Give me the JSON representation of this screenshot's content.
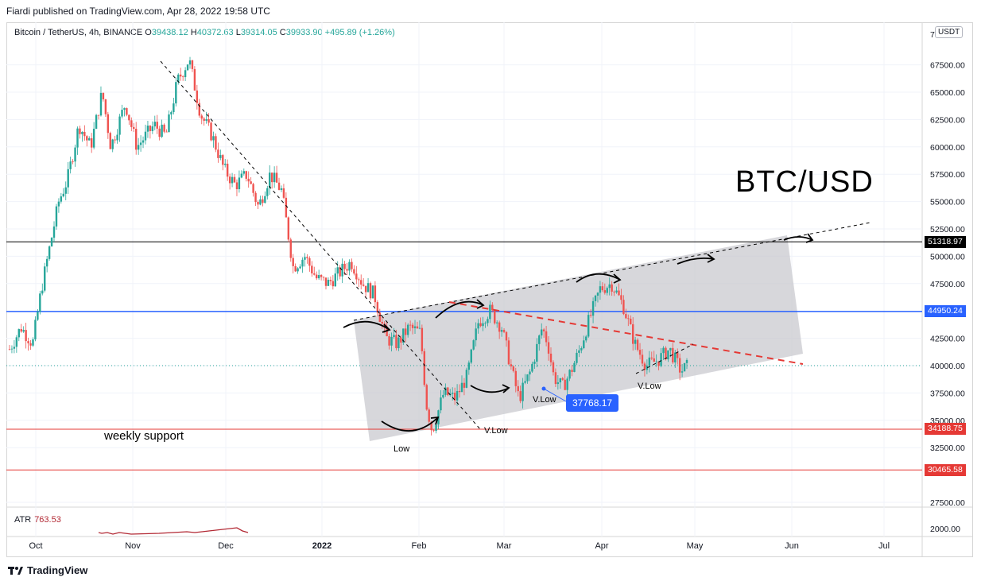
{
  "header": {
    "publisher": "Fiardi published on TradingView.com, Apr 28, 2022 19:58 UTC"
  },
  "symbol_bar": {
    "name": "Bitcoin / TetherUS, 4h, BINANCE",
    "open_label": "O",
    "open": "39438.12",
    "high_label": "H",
    "high": "40372.63",
    "low_label": "L",
    "low": "39314.05",
    "close_label": "C",
    "close": "39933.90",
    "change": "+495.89 (+1.26%)"
  },
  "currency_badge": "USDT",
  "atr": {
    "label": "ATR",
    "value": "763.53"
  },
  "annotations": {
    "title": "BTC/USD",
    "weekly_support": "weekly support",
    "low": "Low",
    "vlow1": "V.Low",
    "vlow2": "V.Low",
    "vlow3": "V.Low",
    "callout": "37768.17"
  },
  "price_tags": [
    {
      "value": "51318.97",
      "color": "#000000"
    },
    {
      "value": "44950.24",
      "color": "#2962ff"
    },
    {
      "value": "34188.75",
      "color": "#e53935"
    },
    {
      "value": "30465.58",
      "color": "#e53935"
    }
  ],
  "footer": {
    "brand": "TradingView"
  },
  "chart_data": {
    "type": "candlestick",
    "y_ticks": [
      "67500.00",
      "65000.00",
      "62500.00",
      "60000.00",
      "57500.00",
      "55000.00",
      "52500.00",
      "50000.00",
      "47500.00",
      "42500.00",
      "40000.00",
      "37500.00",
      "35000.00",
      "32500.00",
      "27500.00"
    ],
    "y_top_partial": "7",
    "atr_tick": "2000.00",
    "x_ticks": [
      "Oct",
      "Nov",
      "Dec",
      "2022",
      "Feb",
      "Mar",
      "Apr",
      "May",
      "Jun",
      "Jul"
    ],
    "horizontal_levels": [
      {
        "value": 51318.97,
        "color": "#000000"
      },
      {
        "value": 44950.24,
        "color": "#2962ff"
      },
      {
        "value": 34188.75,
        "color": "#e53935"
      },
      {
        "value": 30465.58,
        "color": "#e53935"
      }
    ],
    "price_path": [
      [
        0,
        41500
      ],
      [
        0.02,
        43500
      ],
      [
        0.04,
        42000
      ],
      [
        0.055,
        47000
      ],
      [
        0.07,
        51000
      ],
      [
        0.085,
        55000
      ],
      [
        0.1,
        57000
      ],
      [
        0.12,
        62000
      ],
      [
        0.14,
        60000
      ],
      [
        0.16,
        65000
      ],
      [
        0.175,
        60000
      ],
      [
        0.2,
        64000
      ],
      [
        0.22,
        60000
      ],
      [
        0.25,
        62000
      ],
      [
        0.27,
        61000
      ],
      [
        0.29,
        66000
      ],
      [
        0.31,
        68000
      ],
      [
        0.33,
        63000
      ],
      [
        0.35,
        61000
      ],
      [
        0.37,
        58000
      ],
      [
        0.39,
        56500
      ],
      [
        0.41,
        57500
      ],
      [
        0.43,
        54500
      ],
      [
        0.45,
        57500
      ],
      [
        0.47,
        56000
      ],
      [
        0.49,
        49000
      ],
      [
        0.51,
        50000
      ],
      [
        0.53,
        48000
      ],
      [
        0.55,
        47500
      ],
      [
        0.57,
        48500
      ],
      [
        0.59,
        49500
      ],
      [
        0.61,
        47500
      ],
      [
        0.63,
        46500
      ],
      [
        0.65,
        42500
      ],
      [
        0.67,
        42000
      ],
      [
        0.69,
        43500
      ],
      [
        0.71,
        43000
      ],
      [
        0.72,
        36500
      ],
      [
        0.73,
        34000
      ],
      [
        0.75,
        37500
      ],
      [
        0.77,
        37000
      ],
      [
        0.79,
        39000
      ],
      [
        0.81,
        44000
      ],
      [
        0.83,
        45000
      ],
      [
        0.85,
        43500
      ],
      [
        0.87,
        39000
      ],
      [
        0.88,
        37000
      ],
      [
        0.9,
        39500
      ],
      [
        0.92,
        43500
      ],
      [
        0.93,
        42000
      ],
      [
        0.94,
        39000
      ],
      [
        0.955,
        38000
      ],
      [
        0.97,
        39500
      ],
      [
        0.985,
        41500
      ],
      [
        1.0,
        44000
      ],
      [
        1.02,
        47000
      ],
      [
        1.04,
        47500
      ],
      [
        1.06,
        45500
      ],
      [
        1.08,
        42000
      ],
      [
        1.1,
        40000
      ],
      [
        1.12,
        40500
      ],
      [
        1.14,
        41500
      ],
      [
        1.16,
        39500
      ],
      [
        1.17,
        39900
      ]
    ]
  }
}
